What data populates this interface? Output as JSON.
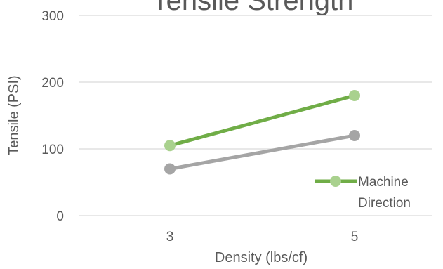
{
  "chart_data": {
    "type": "line",
    "title": "Tensile Strength",
    "xlabel": "Density (lbs/cf)",
    "ylabel": "Tensile (PSI)",
    "categories": [
      "3",
      "5"
    ],
    "ylim": [
      0,
      300
    ],
    "yticks": [
      0,
      100,
      200,
      300
    ],
    "grid": true,
    "legend": {
      "placement": "bottom-right",
      "entries": [
        "Machine Direction"
      ]
    },
    "series": [
      {
        "name": "Machine Direction",
        "values": [
          105,
          180
        ],
        "color": "#70ad47",
        "marker_color": "#a9d18e"
      },
      {
        "values": [
          70,
          120
        ],
        "color": "#a5a5a5",
        "marker_color": "#a5a5a5"
      }
    ]
  }
}
